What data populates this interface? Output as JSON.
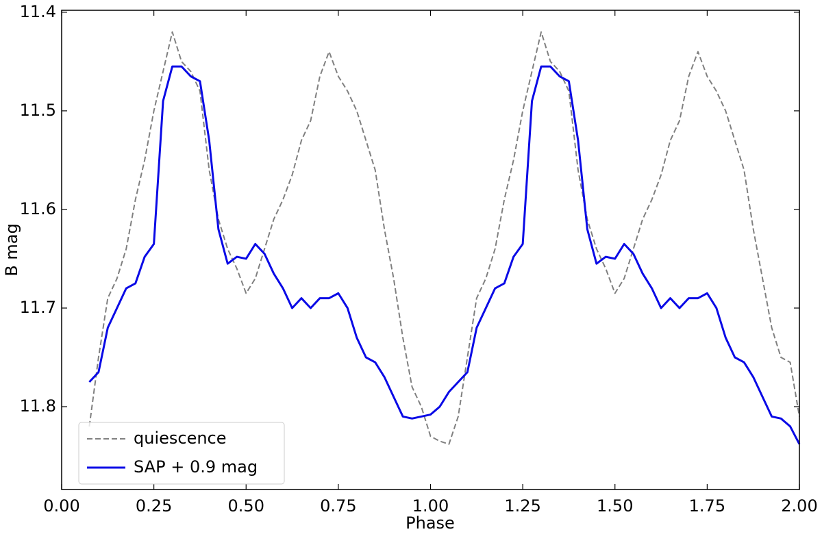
{
  "chart_data": {
    "type": "line",
    "xlabel": "Phase",
    "ylabel": "B mag",
    "x": [
      0.075,
      0.1,
      0.125,
      0.15,
      0.175,
      0.2,
      0.225,
      0.25,
      0.275,
      0.3,
      0.325,
      0.35,
      0.375,
      0.4,
      0.425,
      0.45,
      0.475,
      0.5,
      0.525,
      0.55,
      0.575,
      0.6,
      0.625,
      0.65,
      0.675,
      0.7,
      0.725,
      0.75,
      0.775,
      0.8,
      0.825,
      0.85,
      0.875,
      0.9,
      0.925,
      0.95,
      0.975,
      1.0,
      1.025,
      1.05,
      1.075,
      1.1,
      1.125,
      1.15,
      1.175,
      1.2,
      1.225,
      1.25,
      1.275,
      1.3,
      1.325,
      1.35,
      1.375,
      1.4,
      1.425,
      1.45,
      1.475,
      1.5,
      1.525,
      1.55,
      1.575,
      1.6,
      1.625,
      1.65,
      1.675,
      1.7,
      1.725,
      1.75,
      1.775,
      1.8,
      1.825,
      1.85,
      1.875,
      1.9,
      1.925,
      1.95,
      1.975,
      2.0
    ],
    "series": [
      {
        "name": "quiescence",
        "color": "#808080",
        "dashed": true,
        "values": [
          11.82,
          11.75,
          11.69,
          11.67,
          11.64,
          11.59,
          11.55,
          11.5,
          11.46,
          11.42,
          11.45,
          11.46,
          11.48,
          11.56,
          11.61,
          11.64,
          11.66,
          11.685,
          11.67,
          11.64,
          11.61,
          11.59,
          11.565,
          11.53,
          11.51,
          11.465,
          11.44,
          11.465,
          11.48,
          11.5,
          11.53,
          11.56,
          11.62,
          11.67,
          11.73,
          11.78,
          11.8,
          11.83,
          11.835,
          11.838,
          11.81,
          11.75,
          11.69,
          11.67,
          11.64,
          11.59,
          11.55,
          11.5,
          11.46,
          11.42,
          11.45,
          11.46,
          11.48,
          11.56,
          11.61,
          11.64,
          11.66,
          11.685,
          11.67,
          11.64,
          11.61,
          11.59,
          11.565,
          11.53,
          11.51,
          11.465,
          11.44,
          11.465,
          11.48,
          11.5,
          11.53,
          11.56,
          11.62,
          11.67,
          11.72,
          11.75,
          11.755,
          11.81
        ]
      },
      {
        "name": "SAP + 0.9 mag",
        "color": "#0a0ae6",
        "dashed": false,
        "values": [
          11.775,
          11.765,
          11.72,
          11.7,
          11.68,
          11.675,
          11.648,
          11.635,
          11.49,
          11.455,
          11.455,
          11.465,
          11.47,
          11.53,
          11.62,
          11.655,
          11.648,
          11.65,
          11.635,
          11.645,
          11.665,
          11.68,
          11.7,
          11.69,
          11.7,
          11.69,
          11.69,
          11.685,
          11.7,
          11.73,
          11.75,
          11.755,
          11.77,
          11.79,
          11.81,
          11.812,
          11.81,
          11.808,
          11.8,
          11.785,
          11.775,
          11.765,
          11.72,
          11.7,
          11.68,
          11.675,
          11.648,
          11.635,
          11.49,
          11.455,
          11.455,
          11.465,
          11.47,
          11.53,
          11.62,
          11.655,
          11.648,
          11.65,
          11.635,
          11.645,
          11.665,
          11.68,
          11.7,
          11.69,
          11.7,
          11.69,
          11.69,
          11.685,
          11.7,
          11.73,
          11.75,
          11.755,
          11.77,
          11.79,
          11.81,
          11.812,
          11.82,
          11.838
        ]
      }
    ],
    "xlim": [
      0,
      2
    ],
    "xticks": [
      {
        "value": 0,
        "label": "0.00"
      },
      {
        "value": 0.25,
        "label": "0.25"
      },
      {
        "value": 0.5,
        "label": "0.50"
      },
      {
        "value": 0.75,
        "label": "0.75"
      },
      {
        "value": 1,
        "label": "1.00"
      },
      {
        "value": 1.25,
        "label": "1.25"
      },
      {
        "value": 1.5,
        "label": "1.50"
      },
      {
        "value": 1.75,
        "label": "1.75"
      },
      {
        "value": 2,
        "label": "2.00"
      }
    ],
    "ylim": [
      11.884,
      11.398
    ],
    "yticks": [
      11.4,
      11.5,
      11.6,
      11.7,
      11.8
    ],
    "legend": "lower left",
    "grid": false
  }
}
